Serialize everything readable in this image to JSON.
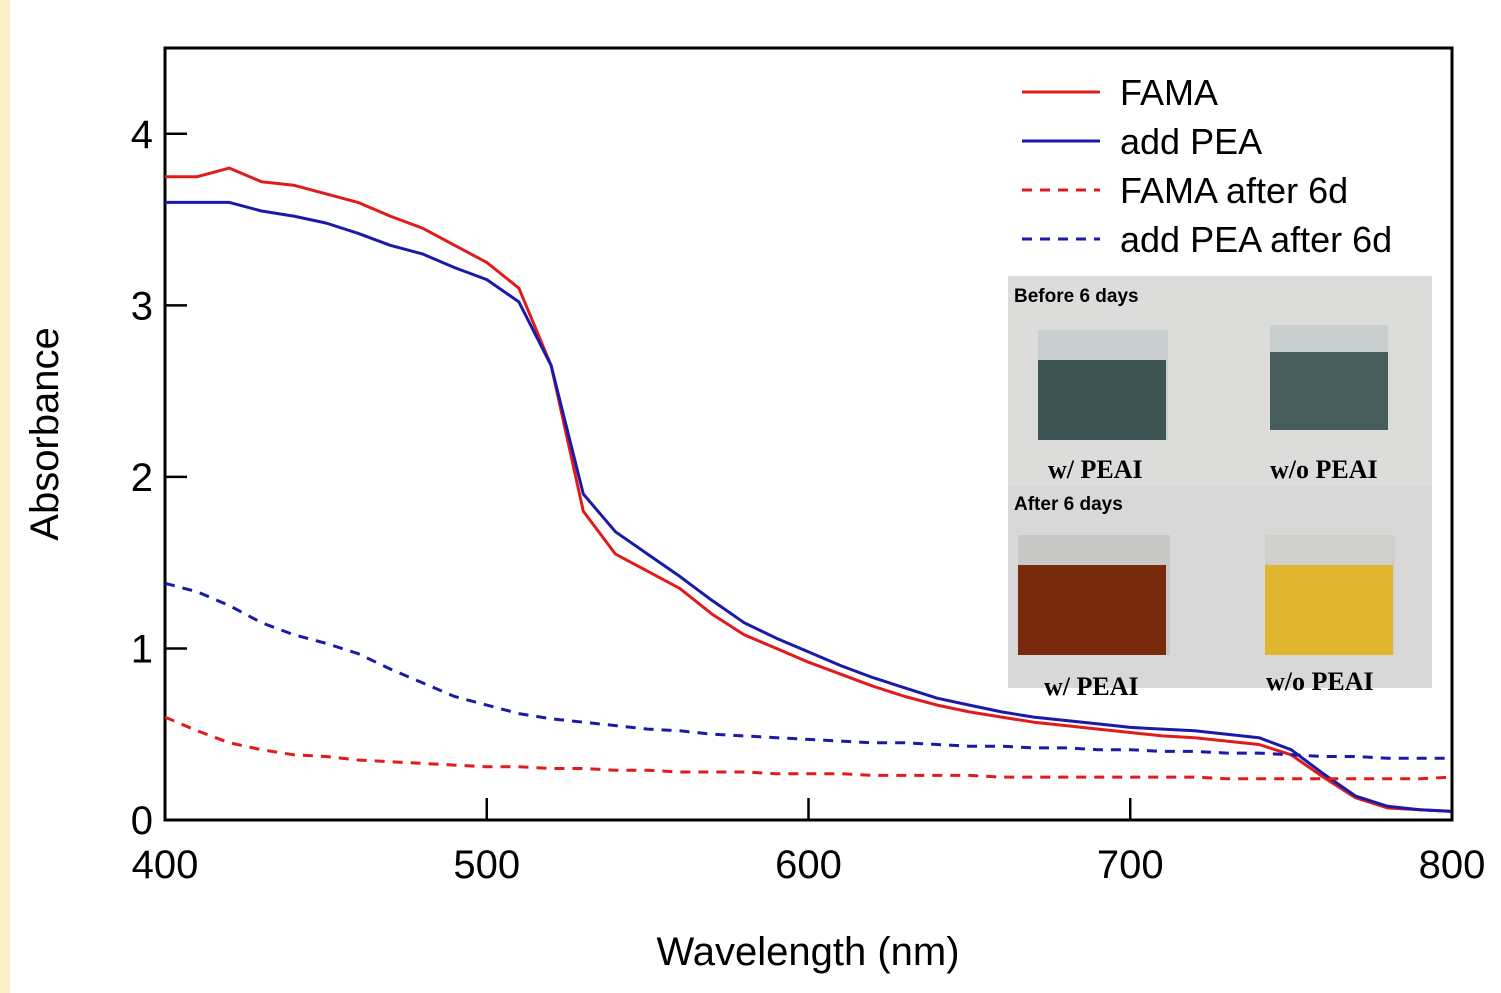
{
  "chart_data": {
    "type": "line",
    "x_label": "Wavelength (nm)",
    "y_label": "Absorbance",
    "x": [
      400,
      410,
      420,
      430,
      440,
      450,
      460,
      470,
      480,
      490,
      500,
      510,
      520,
      530,
      540,
      550,
      560,
      570,
      580,
      590,
      600,
      610,
      620,
      630,
      640,
      650,
      660,
      670,
      680,
      690,
      700,
      710,
      720,
      730,
      740,
      750,
      760,
      770,
      780,
      790,
      800
    ],
    "series": [
      {
        "name": "FAMA",
        "color": "#e01b1b",
        "dashed": false,
        "values": [
          3.75,
          3.75,
          3.8,
          3.72,
          3.7,
          3.65,
          3.6,
          3.52,
          3.45,
          3.35,
          3.25,
          3.1,
          2.65,
          1.8,
          1.55,
          1.45,
          1.35,
          1.2,
          1.08,
          1.0,
          0.92,
          0.85,
          0.78,
          0.72,
          0.67,
          0.63,
          0.6,
          0.57,
          0.55,
          0.53,
          0.51,
          0.49,
          0.48,
          0.46,
          0.44,
          0.38,
          0.25,
          0.13,
          0.07,
          0.06,
          0.05
        ]
      },
      {
        "name": "add PEA",
        "color": "#1a1aa8",
        "dashed": false,
        "values": [
          3.6,
          3.6,
          3.6,
          3.55,
          3.52,
          3.48,
          3.42,
          3.35,
          3.3,
          3.22,
          3.15,
          3.02,
          2.65,
          1.9,
          1.68,
          1.55,
          1.42,
          1.28,
          1.15,
          1.06,
          0.98,
          0.9,
          0.83,
          0.77,
          0.71,
          0.67,
          0.63,
          0.6,
          0.58,
          0.56,
          0.54,
          0.53,
          0.52,
          0.5,
          0.48,
          0.41,
          0.27,
          0.14,
          0.08,
          0.06,
          0.05
        ]
      },
      {
        "name": "FAMA after 6d",
        "color": "#e01b1b",
        "dashed": true,
        "values": [
          0.6,
          0.52,
          0.45,
          0.41,
          0.38,
          0.37,
          0.35,
          0.34,
          0.33,
          0.32,
          0.31,
          0.31,
          0.3,
          0.3,
          0.29,
          0.29,
          0.28,
          0.28,
          0.28,
          0.27,
          0.27,
          0.27,
          0.26,
          0.26,
          0.26,
          0.26,
          0.25,
          0.25,
          0.25,
          0.25,
          0.25,
          0.25,
          0.25,
          0.24,
          0.24,
          0.24,
          0.24,
          0.24,
          0.24,
          0.24,
          0.25
        ]
      },
      {
        "name": "add PEA after 6d",
        "color": "#1a1aa8",
        "dashed": true,
        "values": [
          1.38,
          1.33,
          1.25,
          1.15,
          1.08,
          1.03,
          0.97,
          0.88,
          0.8,
          0.72,
          0.67,
          0.62,
          0.59,
          0.57,
          0.55,
          0.53,
          0.52,
          0.5,
          0.49,
          0.48,
          0.47,
          0.46,
          0.45,
          0.45,
          0.44,
          0.43,
          0.43,
          0.42,
          0.42,
          0.41,
          0.41,
          0.4,
          0.4,
          0.39,
          0.39,
          0.38,
          0.37,
          0.37,
          0.36,
          0.36,
          0.36
        ]
      }
    ],
    "xlim": [
      400,
      800
    ],
    "xticks": [
      400,
      500,
      600,
      700,
      800
    ],
    "ylim": [
      0,
      4.5
    ],
    "yticks": [
      0,
      1,
      2,
      3,
      4
    ],
    "legend": "upper right"
  },
  "inset": {
    "before_title": "Before 6 days",
    "before_left": "w/ PEAI",
    "before_right": "w/o PEAI",
    "after_title": "After 6 days",
    "after_left": "w/ PEAI",
    "after_right": "w/o PEAI"
  }
}
